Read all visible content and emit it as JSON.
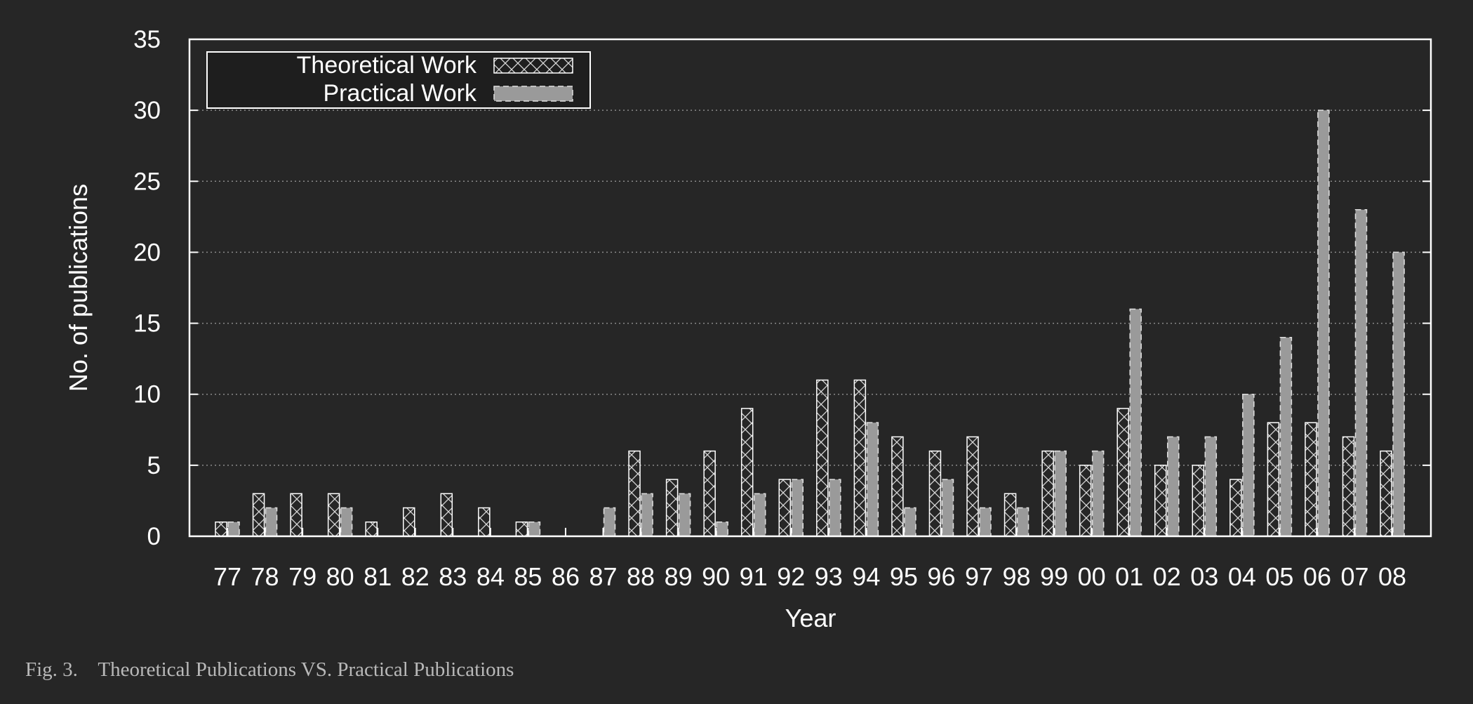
{
  "chart_data": {
    "type": "bar",
    "xlabel": "Year",
    "ylabel": "No. of publications",
    "ylim": [
      0,
      35
    ],
    "yticks": [
      0,
      5,
      10,
      15,
      20,
      25,
      30,
      35
    ],
    "grid": "horizontal dotted",
    "legend_position": "top-left",
    "categories": [
      "77",
      "78",
      "79",
      "80",
      "81",
      "82",
      "83",
      "84",
      "85",
      "86",
      "87",
      "88",
      "89",
      "90",
      "91",
      "92",
      "93",
      "94",
      "95",
      "96",
      "97",
      "98",
      "99",
      "00",
      "01",
      "02",
      "03",
      "04",
      "05",
      "06",
      "07",
      "08"
    ],
    "series": [
      {
        "name": "Theoretical Work",
        "pattern": "crosshatch",
        "values": [
          1,
          3,
          3,
          3,
          1,
          2,
          3,
          2,
          1,
          0,
          0,
          6,
          4,
          6,
          9,
          4,
          11,
          11,
          7,
          6,
          7,
          3,
          6,
          5,
          9,
          5,
          5,
          4,
          8,
          8,
          7,
          6
        ]
      },
      {
        "name": "Practical Work",
        "pattern": "solid-gray-dashed",
        "values": [
          1,
          2,
          0,
          2,
          0,
          0,
          0,
          0,
          1,
          0,
          2,
          3,
          3,
          1,
          3,
          4,
          4,
          8,
          2,
          4,
          2,
          2,
          6,
          6,
          16,
          7,
          7,
          10,
          14,
          30,
          23,
          20
        ]
      }
    ]
  },
  "caption": {
    "label": "Fig. 3.",
    "text": "Theoretical Publications VS. Practical Publications"
  },
  "colors": {
    "background": "#262626",
    "axis": "#ffffff",
    "grid": "#8a8a8a",
    "practical_fill": "#9a9a9a",
    "theoretical_hatch": "#d8d8d8",
    "caption": "#b9b9b9"
  }
}
